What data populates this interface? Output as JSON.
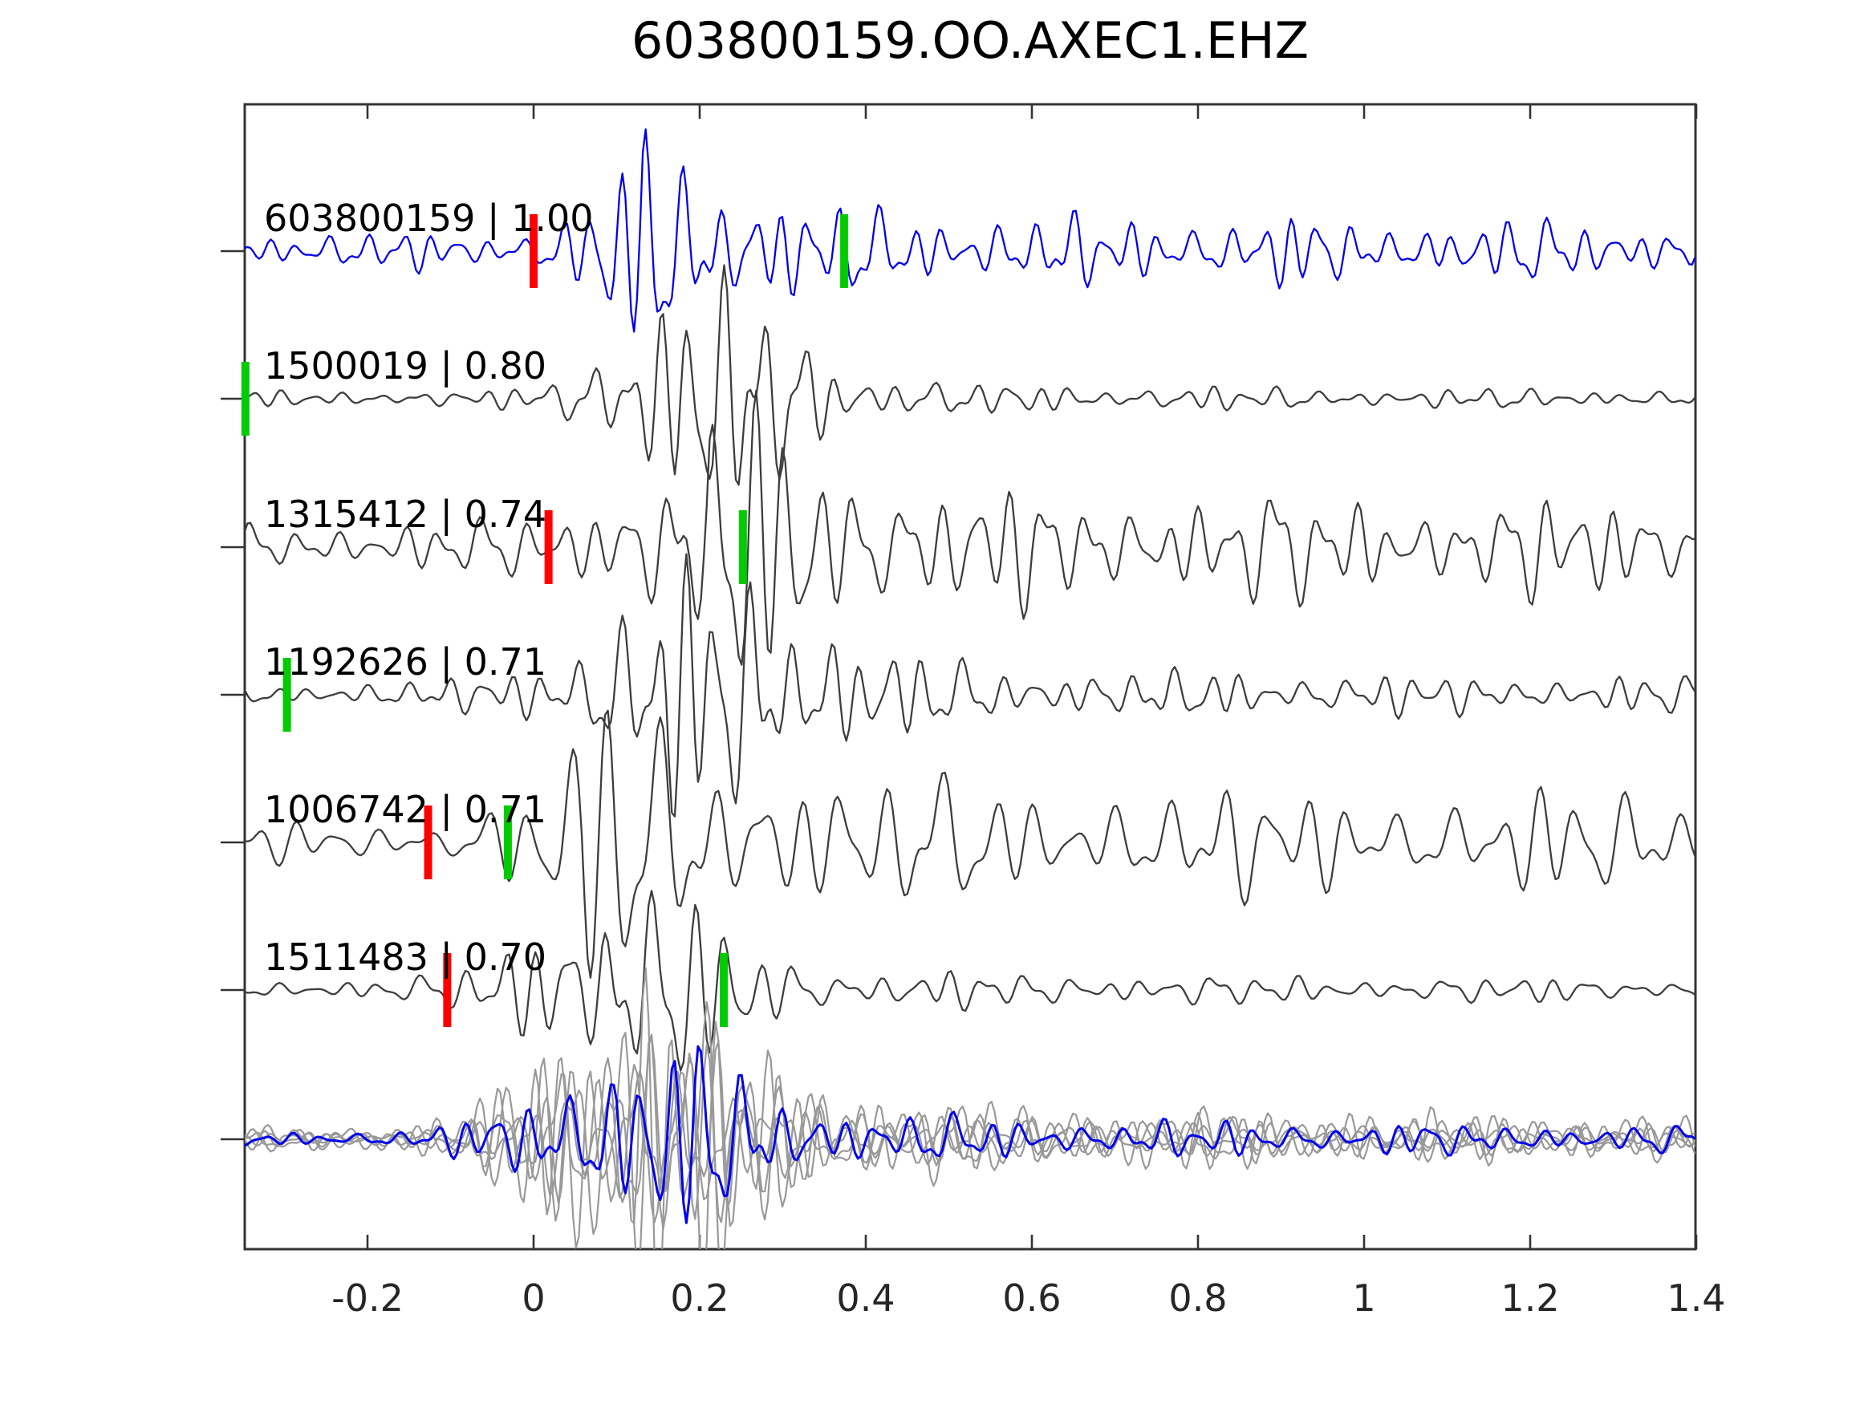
{
  "chart_data": {
    "type": "line",
    "title": "603800159.OO.AXEC1.EHZ",
    "x_axis": {
      "min": -0.348,
      "max": 1.399,
      "ticks": [
        -0.2,
        0,
        0.2,
        0.4,
        0.6,
        0.8,
        1,
        1.2,
        1.4
      ],
      "tick_labels": [
        "-0.2",
        "0",
        "0.2",
        "0.4",
        "0.6",
        "0.8",
        "1",
        "1.2",
        "1.4"
      ],
      "grid": false
    },
    "colors": {
      "template_trace": "#0000ee",
      "detection_trace": "#3d3d3d",
      "stack_trace": "#999999",
      "pick_red": "#ff0000",
      "pick_green": "#00cc00",
      "axis": "#333333",
      "text": "#000000"
    },
    "traces": [
      {
        "label": "603800159 | 1.00",
        "id": "603800159",
        "correlation": 1.0,
        "role": "template",
        "picks": [
          {
            "color": "red",
            "time": 0.0
          },
          {
            "color": "green",
            "time": 0.374
          }
        ],
        "synth": {
          "seed": 11,
          "f": 26,
          "n0": 20,
          "A": 78,
          "tp": 0.13,
          "sl": 0.055,
          "sr": 0.1,
          "coda": 26,
          "tau": 1.4
        }
      },
      {
        "label": "1500019 | 0.80",
        "id": "1500019",
        "correlation": 0.8,
        "role": "detection",
        "picks": [
          {
            "color": "green",
            "time": -0.347
          }
        ],
        "synth": {
          "seed": 22,
          "f": 24,
          "n0": 9,
          "A": 128,
          "tp": 0.17,
          "sl": 0.065,
          "sr": 0.11,
          "coda": 20,
          "tau": 0.38
        }
      },
      {
        "label": "1315412 | 0.74",
        "id": "1315412",
        "correlation": 0.74,
        "role": "detection",
        "picks": [
          {
            "color": "red",
            "time": 0.018
          },
          {
            "color": "green",
            "time": 0.252
          }
        ],
        "synth": {
          "seed": 33,
          "f": 22,
          "n0": 27,
          "A": 88,
          "tp": 0.21,
          "sl": 0.09,
          "sr": 0.13,
          "coda": 40,
          "tau": 2.2
        }
      },
      {
        "label": "1192626 | 0.71",
        "id": "1192626",
        "correlation": 0.71,
        "role": "detection",
        "picks": [
          {
            "color": "green",
            "time": -0.297
          }
        ],
        "synth": {
          "seed": 44,
          "f": 24,
          "n0": 12,
          "A": 118,
          "tp": 0.22,
          "sl": 0.13,
          "sr": 0.11,
          "coda": 26,
          "tau": 0.9
        }
      },
      {
        "label": "1006742 | 0.71",
        "id": "1006742",
        "correlation": 0.71,
        "role": "detection",
        "picks": [
          {
            "color": "red",
            "time": -0.127
          },
          {
            "color": "green",
            "time": -0.031
          }
        ],
        "synth": {
          "seed": 55,
          "f": 18,
          "n0": 21,
          "A": 82,
          "tp": 0.06,
          "sl": 0.07,
          "sr": 0.15,
          "coda": 50,
          "tau": 2.6
        }
      },
      {
        "label": "1511483 | 0.70",
        "id": "1511483",
        "correlation": 0.7,
        "role": "detection",
        "picks": [
          {
            "color": "red",
            "time": -0.104
          },
          {
            "color": "green",
            "time": 0.229
          }
        ],
        "synth": {
          "seed": 66,
          "f": 22,
          "n0": 11,
          "A": 108,
          "tp": 0.08,
          "sl": 0.08,
          "sr": 0.11,
          "coda": 20,
          "tau": 0.5
        }
      }
    ],
    "stack": {
      "n_gray_traces": 5,
      "has_blue_template": true,
      "synth": {
        "seed": 100,
        "f": 24,
        "n0": 12,
        "A": 122,
        "tp": 0.1,
        "sl": 0.09,
        "sr": 0.13,
        "coda": 30,
        "tau": 1.0
      }
    }
  }
}
